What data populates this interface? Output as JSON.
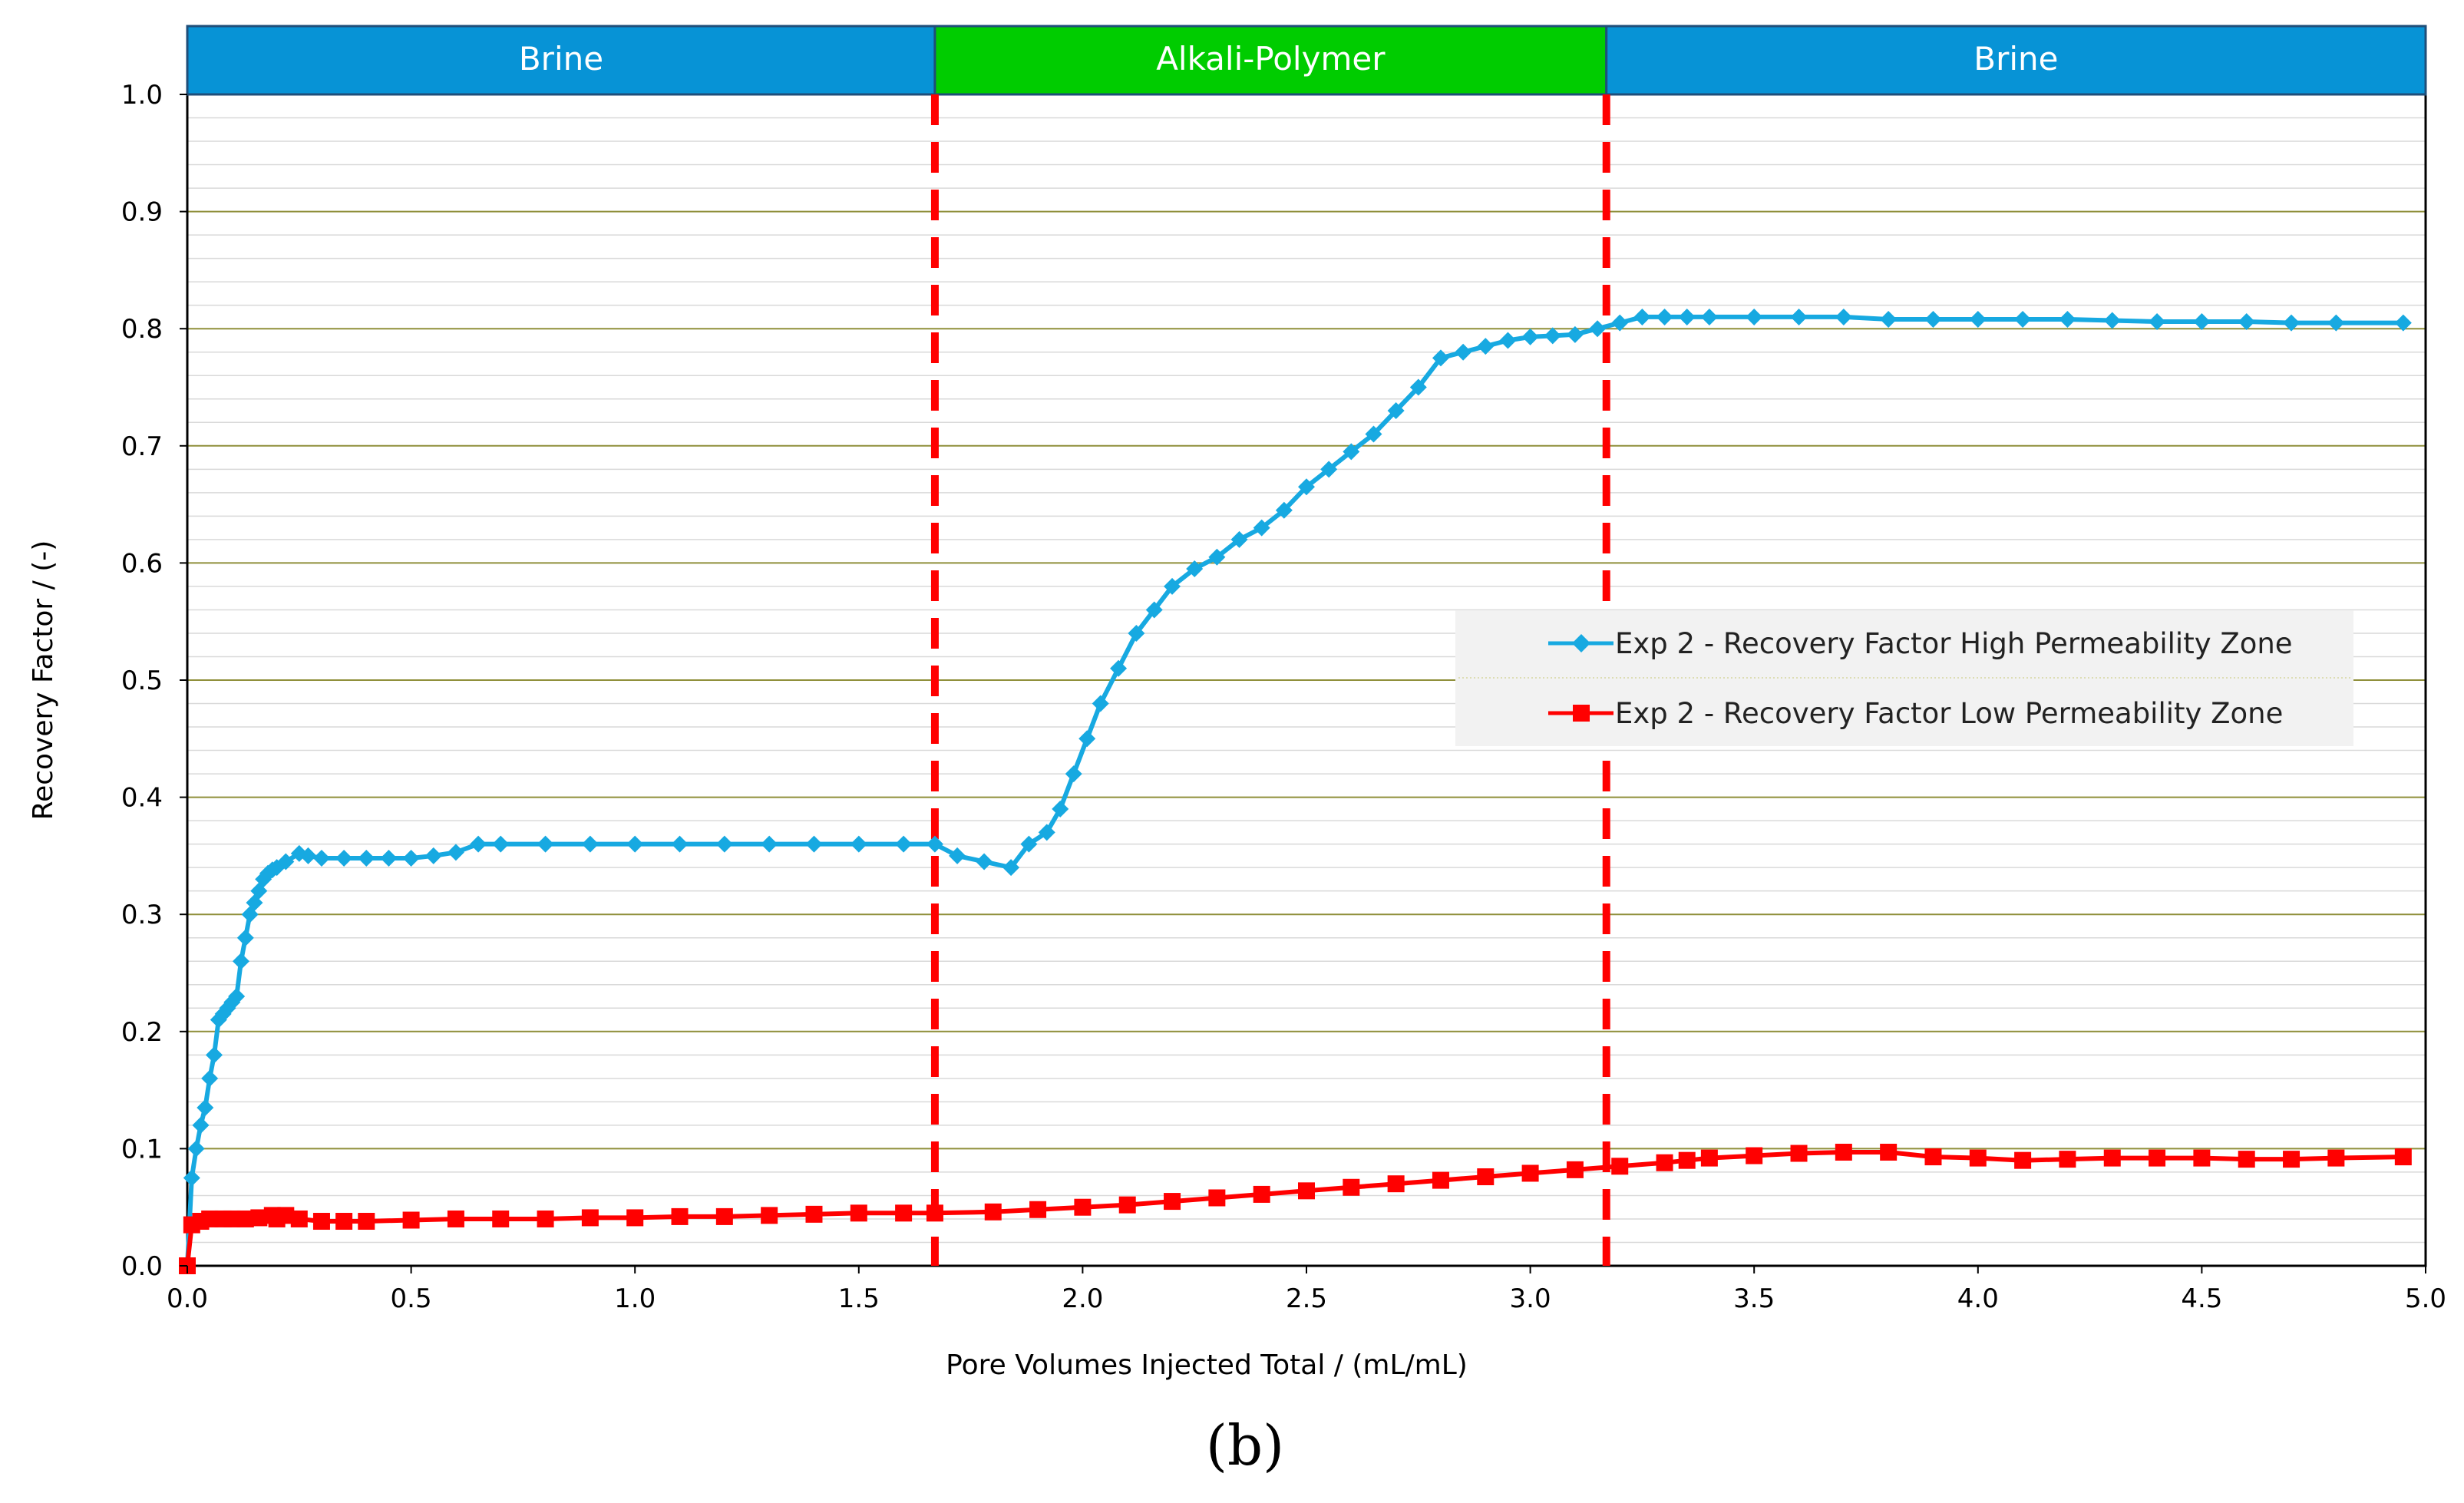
{
  "chart_data": {
    "type": "line",
    "xlabel": "Pore Volumes Injected Total / (mL/mL)",
    "ylabel": "Recovery Factor / (-)",
    "xlim": [
      0,
      5
    ],
    "ylim": [
      0,
      1
    ],
    "x_ticks": [
      "0.0",
      "0.5",
      "1.0",
      "1.5",
      "2.0",
      "2.5",
      "3.0",
      "3.5",
      "4.0",
      "4.5",
      "5.0"
    ],
    "y_ticks": [
      "0.0",
      "0.1",
      "0.2",
      "0.3",
      "0.4",
      "0.5",
      "0.6",
      "0.7",
      "0.8",
      "0.9",
      "1.0"
    ],
    "phases": [
      {
        "label": "Brine",
        "start": 0.0,
        "end": 1.67,
        "color": "#0793d6"
      },
      {
        "label": "Alkali-Polymer",
        "start": 1.67,
        "end": 3.17,
        "color": "#00cc00"
      },
      {
        "label": "Brine",
        "start": 3.17,
        "end": 5.0,
        "color": "#0793d6"
      }
    ],
    "phase_boundaries": [
      1.67,
      3.17
    ],
    "caption": "(b)",
    "series": [
      {
        "name": "Exp 2 - Recovery Factor High Permeability Zone",
        "color": "#17a9e1",
        "marker": "diamond",
        "x": [
          0.0,
          0.01,
          0.02,
          0.03,
          0.04,
          0.05,
          0.06,
          0.07,
          0.08,
          0.09,
          0.1,
          0.11,
          0.12,
          0.13,
          0.14,
          0.15,
          0.16,
          0.17,
          0.18,
          0.19,
          0.2,
          0.22,
          0.25,
          0.27,
          0.3,
          0.35,
          0.4,
          0.45,
          0.5,
          0.55,
          0.6,
          0.65,
          0.7,
          0.8,
          0.9,
          1.0,
          1.1,
          1.2,
          1.3,
          1.4,
          1.5,
          1.6,
          1.67,
          1.72,
          1.78,
          1.84,
          1.88,
          1.92,
          1.95,
          1.98,
          2.01,
          2.04,
          2.08,
          2.12,
          2.16,
          2.2,
          2.25,
          2.3,
          2.35,
          2.4,
          2.45,
          2.5,
          2.55,
          2.6,
          2.65,
          2.7,
          2.75,
          2.8,
          2.85,
          2.9,
          2.95,
          3.0,
          3.05,
          3.1,
          3.15,
          3.2,
          3.25,
          3.3,
          3.35,
          3.4,
          3.5,
          3.6,
          3.7,
          3.8,
          3.9,
          4.0,
          4.1,
          4.2,
          4.3,
          4.4,
          4.5,
          4.6,
          4.7,
          4.8,
          4.95
        ],
        "y": [
          0.0,
          0.075,
          0.1,
          0.12,
          0.135,
          0.16,
          0.18,
          0.21,
          0.215,
          0.22,
          0.225,
          0.23,
          0.26,
          0.28,
          0.3,
          0.31,
          0.32,
          0.33,
          0.335,
          0.338,
          0.34,
          0.345,
          0.352,
          0.35,
          0.348,
          0.348,
          0.348,
          0.348,
          0.348,
          0.35,
          0.353,
          0.36,
          0.36,
          0.36,
          0.36,
          0.36,
          0.36,
          0.36,
          0.36,
          0.36,
          0.36,
          0.36,
          0.36,
          0.35,
          0.345,
          0.34,
          0.36,
          0.37,
          0.39,
          0.42,
          0.45,
          0.48,
          0.51,
          0.54,
          0.56,
          0.58,
          0.595,
          0.605,
          0.62,
          0.63,
          0.645,
          0.665,
          0.68,
          0.695,
          0.71,
          0.73,
          0.75,
          0.775,
          0.78,
          0.785,
          0.79,
          0.793,
          0.794,
          0.795,
          0.8,
          0.805,
          0.81,
          0.81,
          0.81,
          0.81,
          0.81,
          0.81,
          0.81,
          0.808,
          0.808,
          0.808,
          0.808,
          0.808,
          0.807,
          0.806,
          0.806,
          0.806,
          0.805,
          0.805,
          0.805
        ]
      },
      {
        "name": "Exp 2 - Recovery Factor Low Permeability Zone",
        "color": "#ff0000",
        "marker": "square",
        "x": [
          0.0,
          0.01,
          0.03,
          0.05,
          0.08,
          0.1,
          0.13,
          0.16,
          0.19,
          0.2,
          0.22,
          0.25,
          0.3,
          0.35,
          0.4,
          0.5,
          0.6,
          0.7,
          0.8,
          0.9,
          1.0,
          1.1,
          1.2,
          1.3,
          1.4,
          1.5,
          1.6,
          1.67,
          1.8,
          1.9,
          2.0,
          2.1,
          2.2,
          2.3,
          2.4,
          2.5,
          2.6,
          2.7,
          2.8,
          2.9,
          3.0,
          3.1,
          3.2,
          3.3,
          3.35,
          3.4,
          3.5,
          3.6,
          3.7,
          3.8,
          3.9,
          4.0,
          4.1,
          4.2,
          4.3,
          4.4,
          4.5,
          4.6,
          4.7,
          4.8,
          4.95
        ],
        "y": [
          0.0,
          0.035,
          0.038,
          0.04,
          0.04,
          0.04,
          0.04,
          0.041,
          0.043,
          0.04,
          0.043,
          0.04,
          0.038,
          0.038,
          0.038,
          0.039,
          0.04,
          0.04,
          0.04,
          0.041,
          0.041,
          0.042,
          0.042,
          0.043,
          0.044,
          0.045,
          0.045,
          0.045,
          0.046,
          0.048,
          0.05,
          0.052,
          0.055,
          0.058,
          0.061,
          0.064,
          0.067,
          0.07,
          0.073,
          0.076,
          0.079,
          0.082,
          0.085,
          0.088,
          0.09,
          0.092,
          0.094,
          0.096,
          0.097,
          0.097,
          0.093,
          0.092,
          0.09,
          0.091,
          0.092,
          0.092,
          0.092,
          0.091,
          0.091,
          0.092,
          0.093
        ]
      }
    ]
  }
}
